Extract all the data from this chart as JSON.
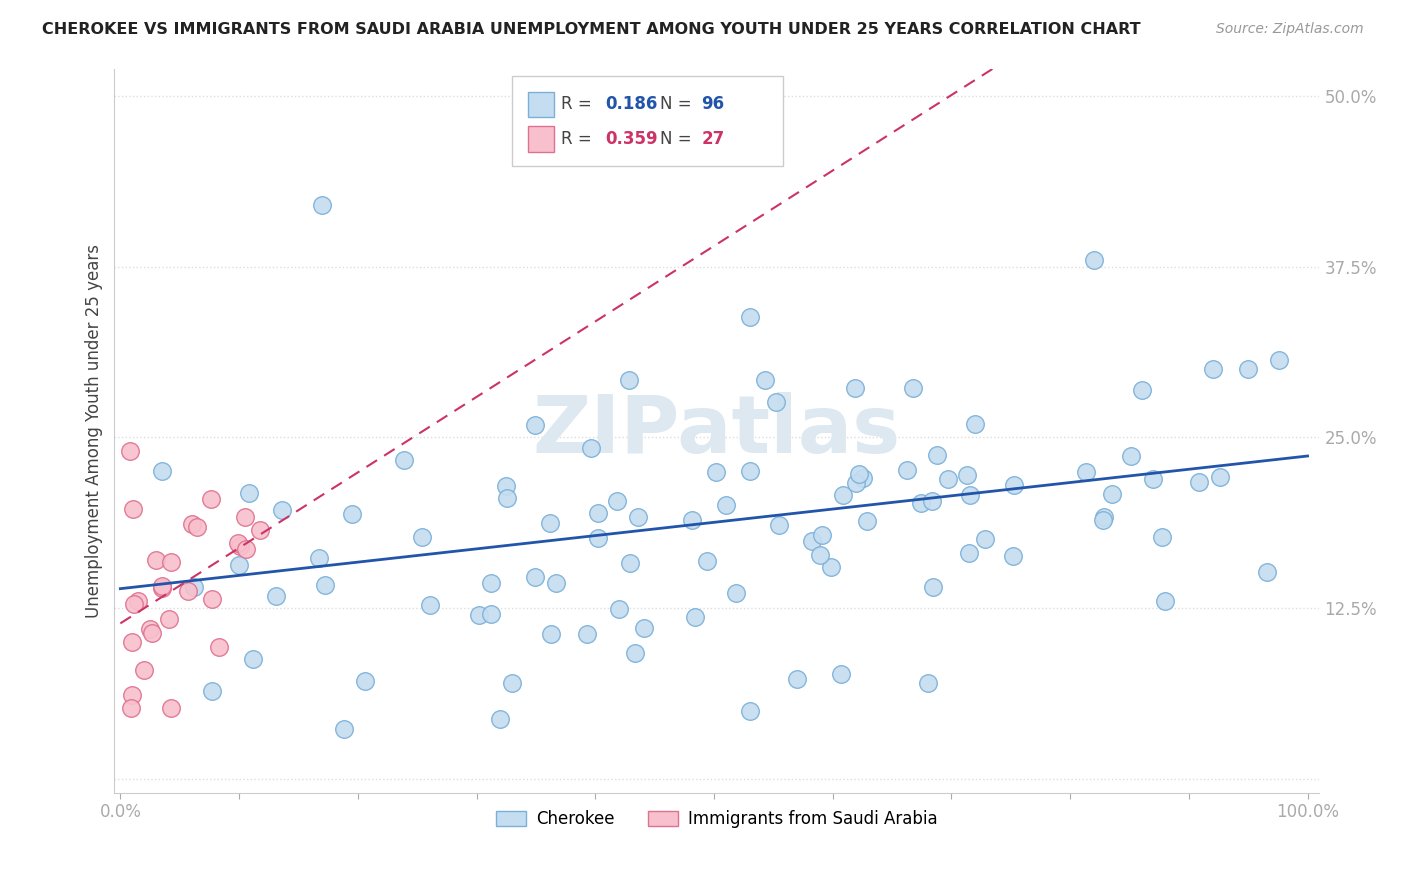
{
  "title": "CHEROKEE VS IMMIGRANTS FROM SAUDI ARABIA UNEMPLOYMENT AMONG YOUTH UNDER 25 YEARS CORRELATION CHART",
  "source": "Source: ZipAtlas.com",
  "ylabel": "Unemployment Among Youth under 25 years",
  "blue_color": "#c5ddf0",
  "blue_edge": "#7ab0d8",
  "pink_color": "#f7c0cc",
  "pink_edge": "#e07090",
  "blue_line_color": "#2255aa",
  "pink_line_color": "#cc3366",
  "watermark": "ZIPatlas",
  "watermark_color": "#dde8f0",
  "background_color": "#ffffff",
  "grid_color": "#dddddd",
  "legend_r1_label": "R = ",
  "legend_r1_val": "0.186",
  "legend_n1_label": "N = ",
  "legend_n1_val": "96",
  "legend_r2_label": "R = ",
  "legend_r2_val": "0.359",
  "legend_n2_label": "N = ",
  "legend_n2_val": "27",
  "legend_val_color_blue": "#2255aa",
  "legend_val_color_pink": "#cc3366",
  "bottom_label_blue": "Cherokee",
  "bottom_label_pink": "Immigrants from Saudi Arabia",
  "blue_N": 96,
  "pink_N": 27,
  "blue_R": 0.186,
  "pink_R": 0.359,
  "xlim": [
    0,
    100
  ],
  "ylim": [
    0,
    50
  ],
  "yticks": [
    0,
    12.5,
    25.0,
    37.5,
    50.0
  ],
  "ytick_labels": [
    "",
    "12.5%",
    "25.0%",
    "37.5%",
    "50.0%"
  ],
  "xtick_labels_show": [
    "0.0%",
    "100.0%"
  ]
}
